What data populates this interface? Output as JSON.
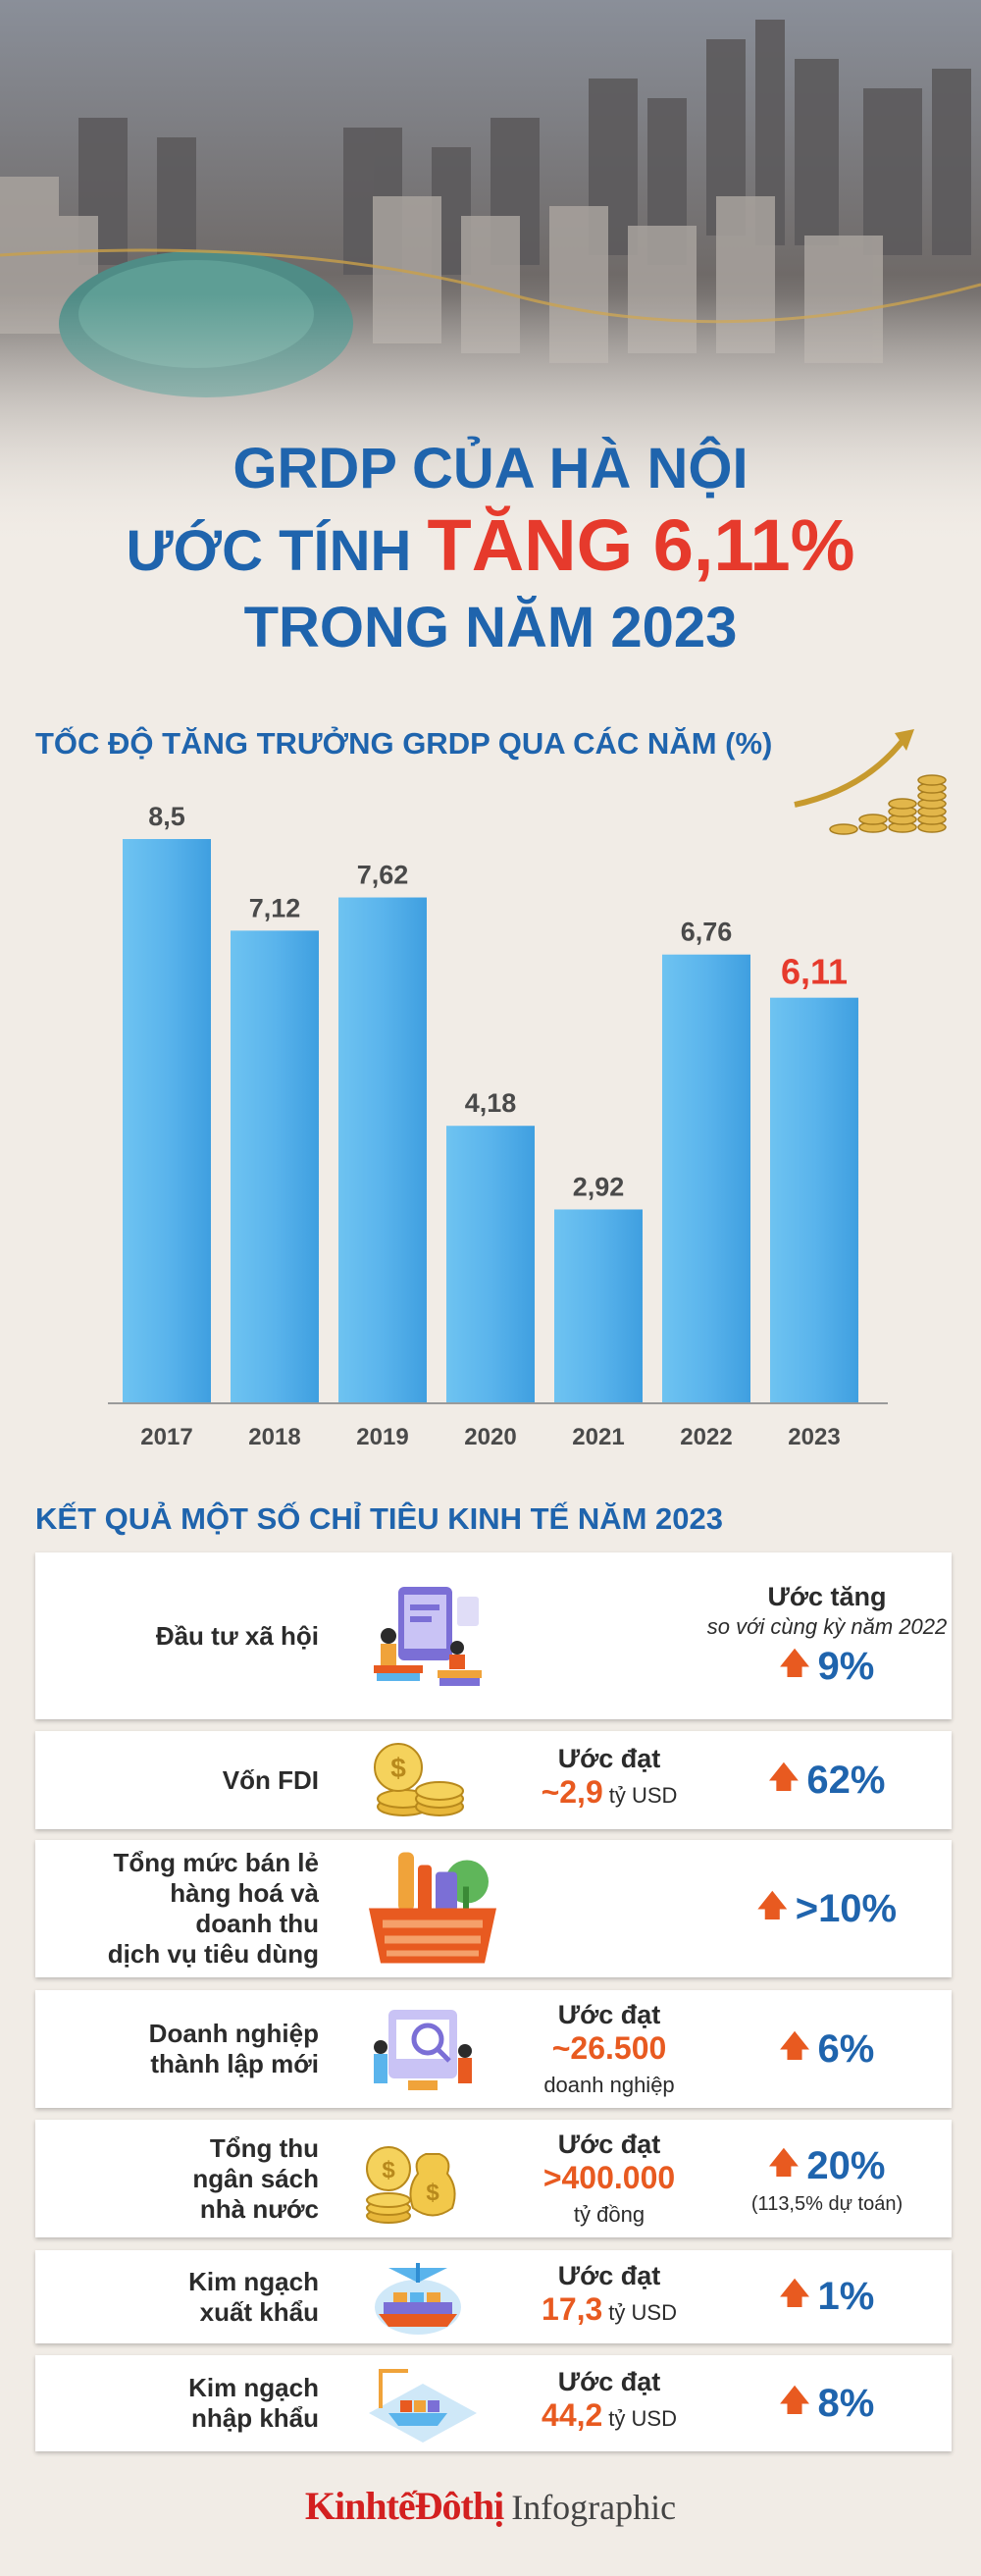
{
  "header": {
    "line1": "GRDP CỦA HÀ NỘI",
    "line2_prefix": "ƯỚC TÍNH ",
    "line2_highlight": "TĂNG 6,11%",
    "line3": "TRONG NĂM 2023"
  },
  "chart_section_title": "TỐC ĐỘ TĂNG TRƯỞNG GRDP QUA CÁC NĂM (%)",
  "chart_data": {
    "type": "bar",
    "categories": [
      "2017",
      "2018",
      "2019",
      "2020",
      "2021",
      "2022",
      "2023"
    ],
    "values": [
      8.5,
      7.12,
      7.62,
      4.18,
      2.92,
      6.76,
      6.11
    ],
    "value_labels": [
      "8,5",
      "7,12",
      "7,62",
      "4,18",
      "2,92",
      "6,76",
      "6,11"
    ],
    "title": "TỐC ĐỘ TĂNG TRƯỞNG GRDP QUA CÁC NĂM (%)",
    "highlight_index": 6,
    "colors": {
      "bar": "#5ab4ec",
      "bar_dark": "#2f8ed3",
      "label": "#4a4a4a",
      "highlight_label": "#e63a2c"
    },
    "ylim": [
      0,
      8.5
    ],
    "grid": false,
    "legend": "none"
  },
  "indicators_title": "KẾT QUẢ MỘT SỐ CHỈ TIÊU KINH TẾ NĂM 2023",
  "indicators": [
    {
      "label": "Đầu tư xã hội",
      "icon": "investment-icon",
      "right_head": "Ước tăng",
      "right_sub": "so với cùng kỳ năm 2022",
      "pct": "9%"
    },
    {
      "label": "Vốn FDI",
      "icon": "coins-icon",
      "pre": "Ước đạt",
      "value": "~2,9",
      "unit": "tỷ USD",
      "pct": "62%"
    },
    {
      "label": "Tổng mức bán lẻ hàng hoá và doanh thu dịch vụ tiêu dùng",
      "label_lines": [
        "Tổng mức bán lẻ",
        "hàng hoá và",
        "doanh thu",
        "dịch vụ tiêu dùng"
      ],
      "icon": "shopping-basket-icon",
      "pct": ">10%"
    },
    {
      "label_lines": [
        "Doanh nghiệp",
        "thành lập mới"
      ],
      "icon": "business-icon",
      "pre": "Ước đạt",
      "value": "~26.500",
      "unit": "doanh nghiệp",
      "pct": "6%"
    },
    {
      "label_lines": [
        "Tổng thu",
        "ngân sách",
        "nhà nước"
      ],
      "icon": "money-bag-icon",
      "pre": "Ước đạt",
      "value": ">400.000",
      "unit": "tỷ đồng",
      "pct": "20%",
      "note": "(113,5% dự toán)"
    },
    {
      "label_lines": [
        "Kim ngạch",
        "xuất khẩu"
      ],
      "icon": "export-icon",
      "pre": "Ước đạt",
      "value": "17,3",
      "unit": "tỷ USD",
      "pct": "1%"
    },
    {
      "label_lines": [
        "Kim ngạch",
        "nhập khẩu"
      ],
      "icon": "import-icon",
      "pre": "Ước đạt",
      "value": "44,2",
      "unit": "tỷ USD",
      "pct": "8%"
    }
  ],
  "footer": {
    "brand": "KinhtếĐôthị",
    "sub": "Infographic"
  },
  "colors": {
    "accent_blue": "#1f64ad",
    "accent_red": "#e63a2c",
    "accent_orange": "#e85a20",
    "background": "#f1ece6"
  }
}
